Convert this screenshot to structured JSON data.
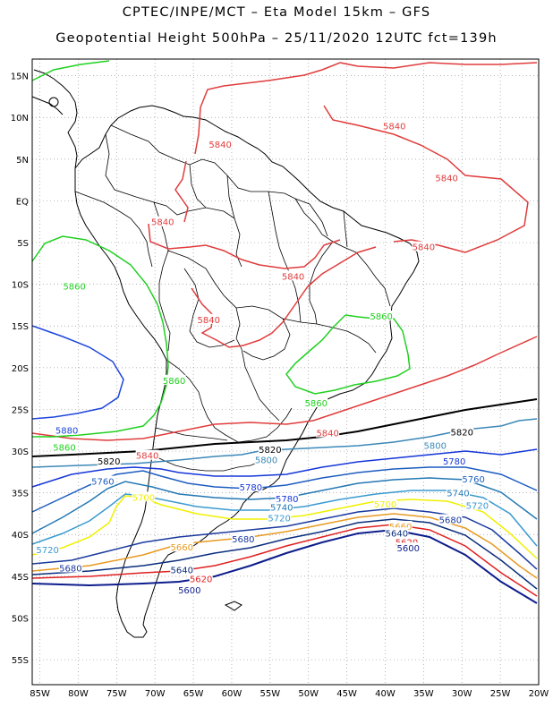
{
  "header": {
    "line1": "CPTEC/INPE/MCT –  Eta Model 15km – GFS",
    "line2": "Geopotential Height 500hPa – 25/11/2020 12UTC fct=139h"
  },
  "axes": {
    "lat_labels": [
      "15N",
      "10N",
      "5N",
      "EQ",
      "5S",
      "10S",
      "15S",
      "20S",
      "25S",
      "30S",
      "35S",
      "40S",
      "45S",
      "50S",
      "55S"
    ],
    "lon_labels": [
      "85W",
      "80W",
      "75W",
      "70W",
      "65W",
      "60W",
      "55W",
      "50W",
      "45W",
      "40W",
      "35W",
      "30W",
      "25W",
      "20W"
    ],
    "lat_range": [
      "17N",
      "58S"
    ],
    "lon_range": [
      "86W",
      "20W"
    ],
    "grid": "dotted"
  },
  "contour_colors": {
    "5580": "#00147a",
    "5600": "#0d1d8c",
    "5620": "#e02020",
    "5640": "#0a2e7d",
    "5660": "#e89a20",
    "5680": "#1a3a9e",
    "5700": "#f0f000",
    "5720": "#3a9ad0",
    "5740": "#2478b4",
    "5760": "#1c5cc0",
    "5780": "#1436d8",
    "5800": "#3c88b8",
    "5820": "#000000",
    "5840": "#e03c3c",
    "5860": "#20d020",
    "5880": "#1e46dc"
  },
  "contour_labels": [
    {
      "text": "5840",
      "color": "#e03c3c",
      "lon": -61.5,
      "lat": 6.8
    },
    {
      "text": "5840",
      "color": "#e03c3c",
      "lon": -38.8,
      "lat": 9.0
    },
    {
      "text": "5840",
      "color": "#e03c3c",
      "lon": -32.0,
      "lat": 2.8
    },
    {
      "text": "5840",
      "color": "#e03c3c",
      "lon": -69.0,
      "lat": -2.5
    },
    {
      "text": "5840",
      "color": "#e03c3c",
      "lon": -35.0,
      "lat": -5.5
    },
    {
      "text": "5840",
      "color": "#e03c3c",
      "lon": -52.0,
      "lat": -9.0
    },
    {
      "text": "5840",
      "color": "#e03c3c",
      "lon": -63.0,
      "lat": -14.2
    },
    {
      "text": "5840",
      "color": "#e03c3c",
      "lon": -47.5,
      "lat": -27.8
    },
    {
      "text": "5840",
      "color": "#e03c3c",
      "lon": -71.0,
      "lat": -30.5
    },
    {
      "text": "5860",
      "color": "#20d020",
      "lon": -80.5,
      "lat": -10.2
    },
    {
      "text": "5860",
      "color": "#20d020",
      "lon": -40.5,
      "lat": -13.8
    },
    {
      "text": "5860",
      "color": "#20d020",
      "lon": -67.5,
      "lat": -21.5
    },
    {
      "text": "5860",
      "color": "#20d020",
      "lon": -49.0,
      "lat": -24.2
    },
    {
      "text": "5860",
      "color": "#20d020",
      "lon": -81.8,
      "lat": -29.5
    },
    {
      "text": "5880",
      "color": "#1e46dc",
      "lon": -81.5,
      "lat": -27.5
    },
    {
      "text": "5820",
      "color": "#000000",
      "lon": -76.0,
      "lat": -31.2
    },
    {
      "text": "5820",
      "color": "#000000",
      "lon": -55.0,
      "lat": -29.8
    },
    {
      "text": "5820",
      "color": "#000000",
      "lon": -30.0,
      "lat": -27.7
    },
    {
      "text": "5800",
      "color": "#3c88b8",
      "lon": -55.5,
      "lat": -31.0
    },
    {
      "text": "5800",
      "color": "#3c88b8",
      "lon": -33.5,
      "lat": -29.3
    },
    {
      "text": "5780",
      "color": "#1436d8",
      "lon": -31.0,
      "lat": -31.2
    },
    {
      "text": "5780",
      "color": "#1436d8",
      "lon": -57.5,
      "lat": -34.3
    },
    {
      "text": "5780",
      "color": "#1436d8",
      "lon": -52.8,
      "lat": -35.7
    },
    {
      "text": "5760",
      "color": "#1c5cc0",
      "lon": -76.8,
      "lat": -33.6
    },
    {
      "text": "5760",
      "color": "#1c5cc0",
      "lon": -28.5,
      "lat": -33.3
    },
    {
      "text": "5740",
      "color": "#2478b4",
      "lon": -53.5,
      "lat": -36.7
    },
    {
      "text": "5740",
      "color": "#2478b4",
      "lon": -30.5,
      "lat": -35.0
    },
    {
      "text": "5720",
      "color": "#3a9ad0",
      "lon": -53.8,
      "lat": -38.0
    },
    {
      "text": "5720",
      "color": "#3a9ad0",
      "lon": -28.0,
      "lat": -36.5
    },
    {
      "text": "5720",
      "color": "#3a9ad0",
      "lon": -84.0,
      "lat": -41.8
    },
    {
      "text": "5700",
      "color": "#f0f000",
      "lon": -71.5,
      "lat": -35.5
    },
    {
      "text": "5700",
      "color": "#f0f000",
      "lon": -40.0,
      "lat": -36.3
    },
    {
      "text": "5680",
      "color": "#1a3a9e",
      "lon": -31.5,
      "lat": -38.2
    },
    {
      "text": "5680",
      "color": "#1a3a9e",
      "lon": -58.5,
      "lat": -40.5
    },
    {
      "text": "5680",
      "color": "#1a3a9e",
      "lon": -81.0,
      "lat": -44.0
    },
    {
      "text": "5660",
      "color": "#e89a20",
      "lon": -66.5,
      "lat": -41.5
    },
    {
      "text": "5660",
      "color": "#e89a20",
      "lon": -38.0,
      "lat": -39.0
    },
    {
      "text": "5640",
      "color": "#0a2e7d",
      "lon": -38.5,
      "lat": -39.8
    },
    {
      "text": "5640",
      "color": "#0a2e7d",
      "lon": -66.5,
      "lat": -44.2
    },
    {
      "text": "5620",
      "color": "#e02020",
      "lon": -64.0,
      "lat": -45.3
    },
    {
      "text": "5620",
      "color": "#e02020",
      "lon": -37.2,
      "lat": -40.9
    },
    {
      "text": "5600",
      "color": "#0d1d8c",
      "lon": -65.5,
      "lat": -46.6
    },
    {
      "text": "5600",
      "color": "#0d1d8c",
      "lon": -37.0,
      "lat": -41.6
    }
  ]
}
